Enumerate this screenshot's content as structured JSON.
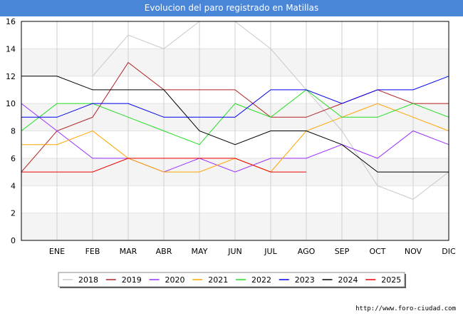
{
  "chart_data": {
    "type": "line",
    "title": "Evolucion del paro registrado en Matillas",
    "categories": [
      "",
      "ENE",
      "FEB",
      "MAR",
      "ABR",
      "MAY",
      "JUN",
      "JUL",
      "AGO",
      "SEP",
      "OCT",
      "NOV",
      "DIC"
    ],
    "ylim": [
      0,
      16
    ],
    "yticks": [
      0,
      2,
      4,
      6,
      8,
      10,
      12,
      14,
      16
    ],
    "series": [
      {
        "name": "2018",
        "color": "#c8c8c8",
        "values": [
          null,
          null,
          12,
          15,
          14,
          16,
          16,
          14,
          11,
          8,
          4,
          3,
          5
        ]
      },
      {
        "name": "2019",
        "color": "#b22222",
        "values": [
          5,
          8,
          9,
          13,
          11,
          11,
          11,
          9,
          9,
          10,
          11,
          10,
          10
        ]
      },
      {
        "name": "2020",
        "color": "#9b30ff",
        "values": [
          10,
          8,
          6,
          6,
          5,
          6,
          5,
          6,
          6,
          7,
          6,
          8,
          7
        ]
      },
      {
        "name": "2021",
        "color": "#ffa500",
        "values": [
          7,
          7,
          8,
          6,
          5,
          5,
          6,
          5,
          8,
          9,
          10,
          9,
          8
        ]
      },
      {
        "name": "2022",
        "color": "#22dd22",
        "values": [
          8,
          10,
          10,
          9,
          8,
          7,
          10,
          9,
          11,
          9,
          9,
          10,
          9
        ]
      },
      {
        "name": "2023",
        "color": "#0000ee",
        "values": [
          9,
          9,
          10,
          10,
          9,
          9,
          9,
          11,
          11,
          10,
          11,
          11,
          12
        ]
      },
      {
        "name": "2024",
        "color": "#000000",
        "values": [
          12,
          12,
          11,
          11,
          11,
          8,
          7,
          8,
          8,
          7,
          5,
          5,
          5
        ]
      },
      {
        "name": "2025",
        "color": "#ee0000",
        "values": [
          5,
          5,
          5,
          6,
          6,
          6,
          6,
          5,
          5,
          null,
          null,
          null,
          null
        ]
      }
    ]
  },
  "footer": {
    "url": "http://www.foro-ciudad.com"
  }
}
